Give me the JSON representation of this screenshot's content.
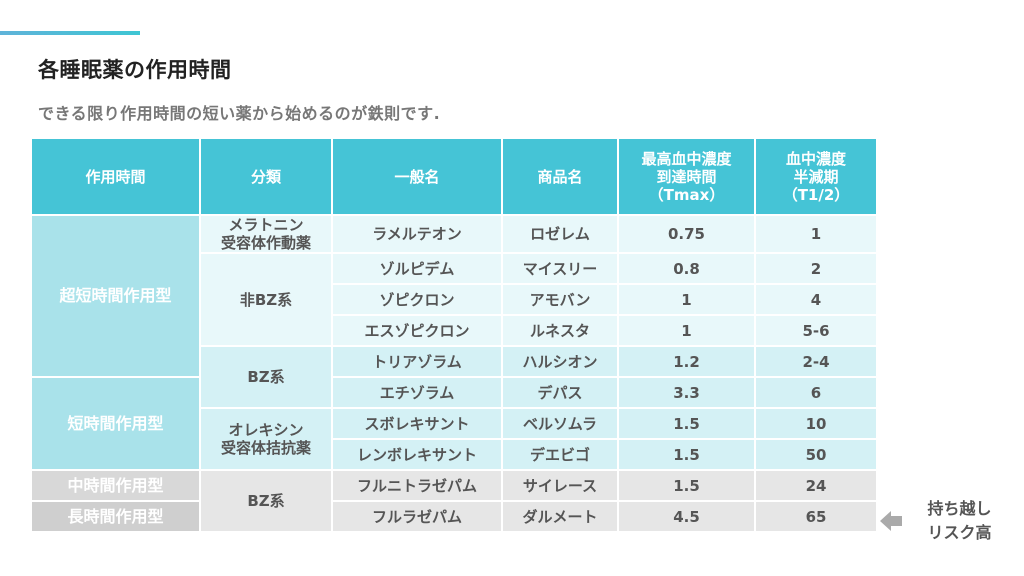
{
  "title": "各睡眠薬の作用時間",
  "subtitle": "できる限り作用時間の短い薬から始めるのが鉄則です.",
  "table": {
    "headers": {
      "duration": "作用時間",
      "classification": "分類",
      "generic": "一般名",
      "brand": "商品名",
      "tmax": "最高血中濃度\n到達時間\n（Tmax）",
      "half_life": "血中濃度\n半減期\n（T1/2）"
    },
    "categories": {
      "ultra_short": "超短時間作用型",
      "short": "短時間作用型",
      "intermediate": "中時間作用型",
      "long": "長時間作用型"
    },
    "classes": {
      "melatonin": "メラトニン\n受容体作動薬",
      "non_bz": "非BZ系",
      "bz_1": "BZ系",
      "orexin": "オレキシン\n受容体拮抗薬",
      "bz_2": "BZ系"
    },
    "rows": [
      {
        "generic": "ラメルテオン",
        "brand": "ロゼレム",
        "tmax": "0.75",
        "half_life": "1"
      },
      {
        "generic": "ゾルピデム",
        "brand": "マイスリー",
        "tmax": "0.8",
        "half_life": "2"
      },
      {
        "generic": "ゾピクロン",
        "brand": "アモバン",
        "tmax": "1",
        "half_life": "4"
      },
      {
        "generic": "エスゾピクロン",
        "brand": "ルネスタ",
        "tmax": "1",
        "half_life": "5-6"
      },
      {
        "generic": "トリアゾラム",
        "brand": "ハルシオン",
        "tmax": "1.2",
        "half_life": "2-4"
      },
      {
        "generic": "エチゾラム",
        "brand": "デパス",
        "tmax": "3.3",
        "half_life": "6"
      },
      {
        "generic": "スボレキサント",
        "brand": "ベルソムラ",
        "tmax": "1.5",
        "half_life": "10"
      },
      {
        "generic": "レンボレキサント",
        "brand": "デエビゴ",
        "tmax": "1.5",
        "half_life": "50"
      },
      {
        "generic": "フルニトラゼパム",
        "brand": "サイレース",
        "tmax": "1.5",
        "half_life": "24"
      },
      {
        "generic": "フルラゼパム",
        "brand": "ダルメート",
        "tmax": "4.5",
        "half_life": "65"
      }
    ]
  },
  "note": {
    "icon": "left-arrow-icon",
    "text": "持ち越し\nリスク高"
  },
  "colors": {
    "header": "#45c4d6",
    "accent_bar": "#3ec6d4",
    "row_light": "#e8f8fa",
    "row_dark": "#d4f1f5",
    "category_cyan": "#a9e2ea",
    "row_gray": "#e6e6e6",
    "category_gray": "#d2d2d2",
    "arrow": "#aaaaaa"
  }
}
